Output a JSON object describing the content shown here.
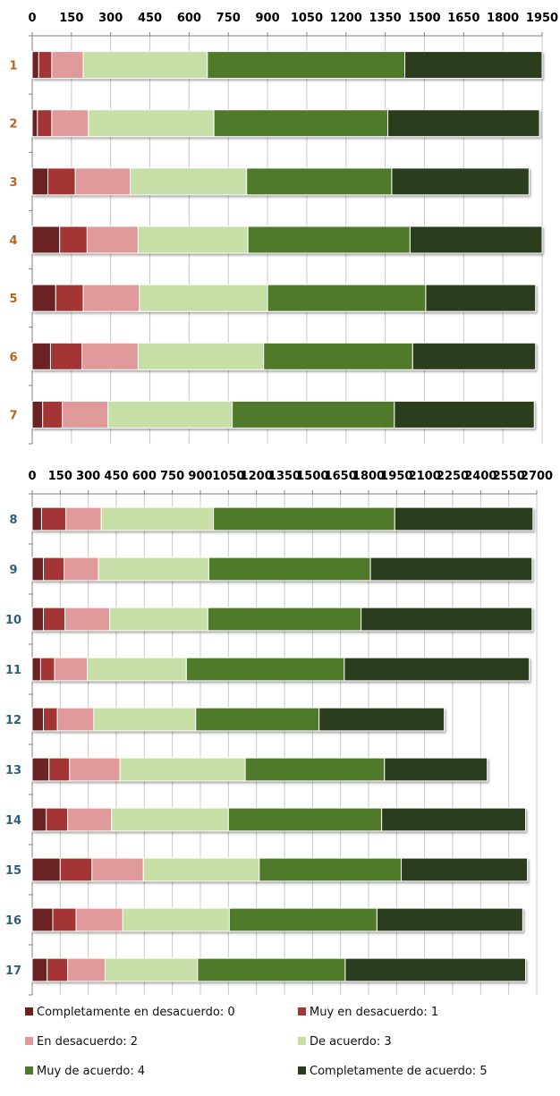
{
  "colors": [
    "#6b2020",
    "#a33636",
    "#e09a9a",
    "#c5dfa6",
    "#4f7a2c",
    "#2a3d1c"
  ],
  "legend": [
    {
      "label": "Completamente en desacuerdo: 0",
      "color": "#6b2020"
    },
    {
      "label": "Muy en desacuerdo: 1",
      "color": "#a33636"
    },
    {
      "label": "En desacuerdo: 2",
      "color": "#e09a9a"
    },
    {
      "label": "De acuerdo: 3",
      "color": "#c5dfa6"
    },
    {
      "label": "Muy de acuerdo: 4",
      "color": "#4f7a2c"
    },
    {
      "label": "Completamente de acuerdo: 5",
      "color": "#2a3d1c"
    }
  ],
  "chart_data": [
    {
      "type": "bar",
      "orientation": "horizontal",
      "stacked": true,
      "xlim": [
        0,
        1950
      ],
      "xticks": [
        "0",
        "150",
        "300",
        "450",
        "600",
        "750",
        "900",
        "1050",
        "1200",
        "1350",
        "1500",
        "1650",
        "1800",
        "1950"
      ],
      "categories": [
        "1",
        "2",
        "3",
        "4",
        "5",
        "6",
        "7"
      ],
      "series": [
        {
          "name": "Completamente en desacuerdo: 0",
          "values": [
            25,
            20,
            60,
            105,
            90,
            70,
            40
          ]
        },
        {
          "name": "Muy en desacuerdo: 1",
          "values": [
            50,
            55,
            105,
            105,
            105,
            120,
            75
          ]
        },
        {
          "name": "En desacuerdo: 2",
          "values": [
            120,
            140,
            210,
            195,
            215,
            215,
            175
          ]
        },
        {
          "name": "De acuerdo: 3",
          "values": [
            475,
            480,
            445,
            420,
            490,
            480,
            475
          ]
        },
        {
          "name": "Muy de acuerdo: 4",
          "values": [
            755,
            665,
            555,
            620,
            605,
            570,
            620
          ]
        },
        {
          "name": "Completamente de acuerdo: 5",
          "values": [
            525,
            580,
            525,
            505,
            420,
            470,
            535
          ]
        }
      ]
    },
    {
      "type": "bar",
      "orientation": "horizontal",
      "stacked": true,
      "xlim": [
        0,
        2700
      ],
      "xticks": [
        "0",
        "150",
        "300",
        "450",
        "600",
        "750",
        "900",
        "1050",
        "1200",
        "1350",
        "1500",
        "1650",
        "1800",
        "1950",
        "2100",
        "2250",
        "2400",
        "2550",
        "2700"
      ],
      "categories": [
        "8",
        "9",
        "10",
        "11",
        "12",
        "13",
        "14",
        "15",
        "16",
        "17"
      ],
      "series": [
        {
          "name": "Completamente en desacuerdo: 0",
          "values": [
            50,
            60,
            60,
            45,
            60,
            90,
            75,
            150,
            110,
            80
          ]
        },
        {
          "name": "Muy en desacuerdo: 1",
          "values": [
            130,
            110,
            115,
            75,
            75,
            110,
            115,
            170,
            125,
            110
          ]
        },
        {
          "name": "En desacuerdo: 2",
          "values": [
            190,
            185,
            240,
            175,
            195,
            270,
            235,
            275,
            250,
            200
          ]
        },
        {
          "name": "De acuerdo: 3",
          "values": [
            600,
            590,
            525,
            530,
            545,
            670,
            625,
            620,
            570,
            495
          ]
        },
        {
          "name": "Muy de acuerdo: 4",
          "values": [
            970,
            865,
            820,
            845,
            660,
            745,
            820,
            760,
            790,
            790
          ]
        },
        {
          "name": "Completamente de acuerdo: 5",
          "values": [
            740,
            865,
            915,
            990,
            670,
            550,
            770,
            675,
            780,
            965
          ]
        }
      ]
    }
  ]
}
